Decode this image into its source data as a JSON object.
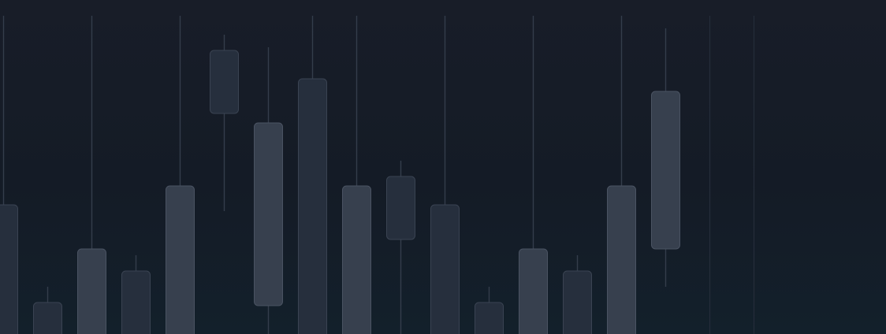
{
  "chart_data": {
    "type": "candlestick",
    "title": "",
    "xlabel": "",
    "ylabel": "",
    "ylim": [
      0,
      424
    ],
    "grid": false,
    "legend": "none",
    "colors": {
      "light_body": "#37404e",
      "dark_body": "#262f3d",
      "wick": "#343d4b",
      "background": "#161c27"
    },
    "candles": [
      {
        "high": 424,
        "top": 164,
        "bottom": 0,
        "low": 0,
        "shade": "dark"
      },
      {
        "high": 60,
        "top": 40,
        "bottom": 0,
        "low": 0,
        "shade": "dark"
      },
      {
        "high": 424,
        "top": 108,
        "bottom": 0,
        "low": 0,
        "shade": "light"
      },
      {
        "high": 100,
        "top": 80,
        "bottom": 0,
        "low": 0,
        "shade": "dark"
      },
      {
        "high": 424,
        "top": 188,
        "bottom": 0,
        "low": 0,
        "shade": "light"
      },
      {
        "high": 380,
        "top": 360,
        "bottom": 280,
        "low": 156,
        "shade": "dark"
      },
      {
        "high": 364,
        "top": 268,
        "bottom": 36,
        "low": 0,
        "shade": "light"
      },
      {
        "high": 424,
        "top": 324,
        "bottom": 0,
        "low": 0,
        "shade": "dark"
      },
      {
        "high": 424,
        "top": 188,
        "bottom": 0,
        "low": 0,
        "shade": "light"
      },
      {
        "high": 220,
        "top": 200,
        "bottom": 120,
        "low": 0,
        "shade": "dark"
      },
      {
        "high": 424,
        "top": 164,
        "bottom": 0,
        "low": 0,
        "shade": "dark"
      },
      {
        "high": 60,
        "top": 40,
        "bottom": 0,
        "low": 0,
        "shade": "dark"
      },
      {
        "high": 424,
        "top": 108,
        "bottom": 0,
        "low": 0,
        "shade": "light"
      },
      {
        "high": 100,
        "top": 80,
        "bottom": 0,
        "low": 0,
        "shade": "dark"
      },
      {
        "high": 424,
        "top": 188,
        "bottom": 0,
        "low": 0,
        "shade": "light"
      },
      {
        "high": 388,
        "top": 308,
        "bottom": 108,
        "low": 60,
        "shade": "light"
      },
      {
        "high": 424,
        "top": null,
        "bottom": null,
        "low": 0,
        "shade": "none"
      },
      {
        "high": 424,
        "top": null,
        "bottom": null,
        "low": 0,
        "shade": "none"
      }
    ]
  }
}
